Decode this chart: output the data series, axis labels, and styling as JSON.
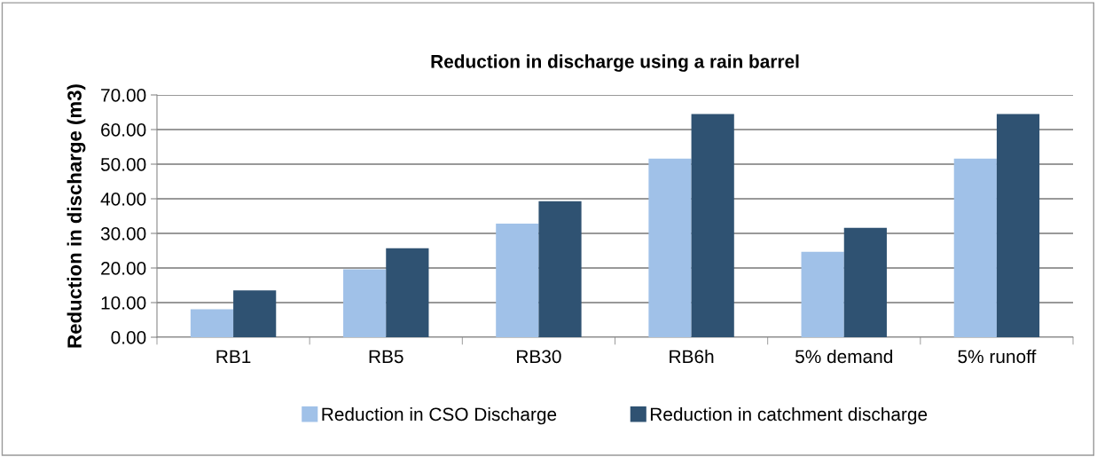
{
  "chart_data": {
    "type": "bar",
    "title": "Reduction in discharge using a rain barrel",
    "ylabel": "Reduction in discharge (m3)",
    "categories": [
      "RB1",
      "RB5",
      "RB30",
      "RB6h",
      "5% demand",
      "5% runoff"
    ],
    "series": [
      {
        "name": "Reduction in CSO Discharge",
        "color": "#a0c1e8",
        "values": [
          8.1,
          19.6,
          32.8,
          51.6,
          24.7,
          51.6
        ]
      },
      {
        "name": "Reduction in catchment discharge",
        "color": "#2f5272",
        "values": [
          13.5,
          25.7,
          39.3,
          64.5,
          31.6,
          64.5
        ]
      }
    ],
    "ylim": [
      0,
      70
    ],
    "yticks": [
      {
        "value": 0,
        "label": "0.00"
      },
      {
        "value": 10,
        "label": "10.00"
      },
      {
        "value": 20,
        "label": "20.00"
      },
      {
        "value": 30,
        "label": "30.00"
      },
      {
        "value": 40,
        "label": "40.00"
      },
      {
        "value": 50,
        "label": "50.00"
      },
      {
        "value": 60,
        "label": "60.00"
      },
      {
        "value": 70,
        "label": "70.00"
      }
    ],
    "grid": "y",
    "legend": "bottom"
  }
}
